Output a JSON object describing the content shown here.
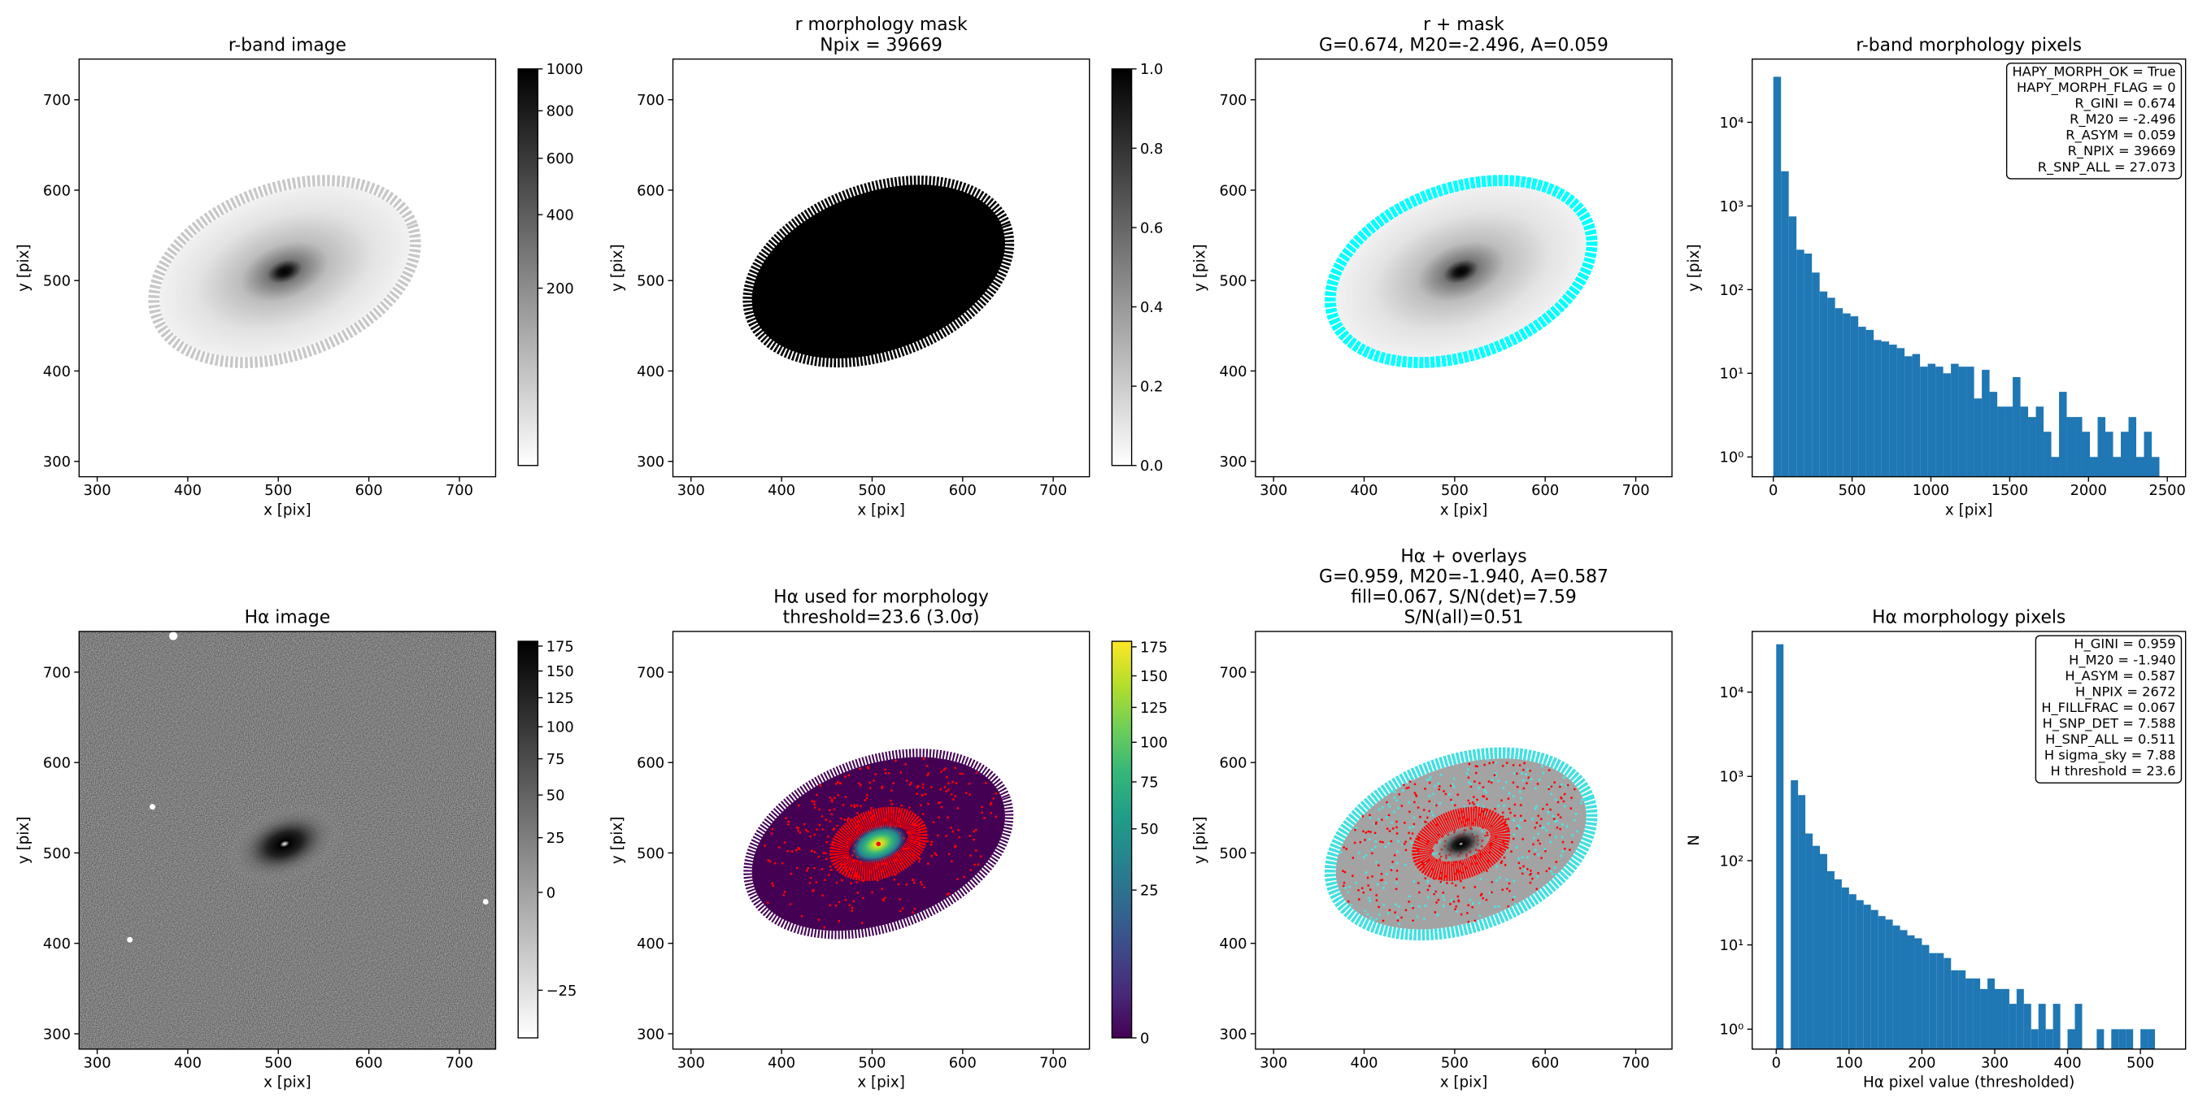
{
  "chart_data": [
    {
      "type": "image",
      "title": [
        "r-band image"
      ],
      "xlabel": "x [pix]",
      "ylabel": "y [pix]",
      "xlim": [
        280,
        740
      ],
      "ylim": [
        283,
        745
      ],
      "xticks": [
        300,
        400,
        500,
        600,
        700
      ],
      "yticks": [
        300,
        400,
        500,
        600,
        700
      ],
      "colorbar": {
        "colormap": "gray_r",
        "scale": "sqrt",
        "clim": [
          0,
          1000
        ],
        "ticks": [
          200,
          400,
          600,
          800,
          1000
        ]
      }
    },
    {
      "type": "image",
      "title": [
        "r morphology mask",
        "Npix = 39669"
      ],
      "xlabel": "x [pix]",
      "ylabel": "y [pix]",
      "xlim": [
        280,
        740
      ],
      "ylim": [
        283,
        745
      ],
      "xticks": [
        300,
        400,
        500,
        600,
        700
      ],
      "yticks": [
        300,
        400,
        500,
        600,
        700
      ],
      "colorbar": {
        "colormap": "gray_r",
        "scale": "linear",
        "clim": [
          0,
          1
        ],
        "ticks": [
          {
            "value": 0,
            "label": "0.0"
          },
          {
            "value": 0.2,
            "label": "0.2"
          },
          {
            "value": 0.4,
            "label": "0.4"
          },
          {
            "value": 0.6,
            "label": "0.6"
          },
          {
            "value": 0.8,
            "label": "0.8"
          },
          {
            "value": 1,
            "label": "1.0"
          }
        ]
      }
    },
    {
      "type": "image",
      "title": [
        "r + mask",
        "G=0.674, M20=-2.496, A=0.059"
      ],
      "xlabel": "x [pix]",
      "ylabel": "y [pix]",
      "xlim": [
        280,
        740
      ],
      "ylim": [
        283,
        745
      ],
      "xticks": [
        300,
        400,
        500,
        600,
        700
      ],
      "yticks": [
        300,
        400,
        500,
        600,
        700
      ]
    },
    {
      "type": "histogram",
      "title": [
        "r-band morphology pixels"
      ],
      "xlabel": "x [pix]",
      "ylabel": "y [pix]",
      "color": "#1f77b4",
      "bins": [
        0,
        49,
        98,
        147,
        196,
        245,
        294,
        343,
        392,
        441,
        490,
        539,
        588,
        637,
        686,
        735,
        784,
        833,
        882,
        931,
        980,
        1029,
        1078,
        1127,
        1176,
        1225,
        1274,
        1323,
        1372,
        1421,
        1470,
        1519,
        1568,
        1617,
        1666,
        1715,
        1764,
        1813,
        1862,
        1911,
        1960,
        2009,
        2058,
        2107,
        2156,
        2205,
        2254,
        2303,
        2352,
        2401,
        2450
      ],
      "counts": [
        35000,
        2600,
        750,
        300,
        270,
        160,
        95,
        80,
        60,
        52,
        48,
        36,
        33,
        25,
        24,
        22,
        20,
        16,
        17,
        12,
        13,
        12,
        10,
        13,
        12,
        12,
        5,
        11,
        6,
        4,
        4,
        9,
        4,
        3,
        4,
        2,
        1,
        6,
        3,
        3,
        2,
        1,
        3,
        2,
        1,
        2,
        3,
        1,
        2,
        1
      ],
      "xlim": [
        -134,
        2616
      ],
      "ylim": [
        0.58,
        57000
      ],
      "yscale": "log",
      "xticks": [
        0,
        500,
        1000,
        1500,
        2000,
        2500
      ],
      "yticks": [
        {
          "value": 1,
          "label": "10⁰"
        },
        {
          "value": 10,
          "label": "10¹"
        },
        {
          "value": 100,
          "label": "10²"
        },
        {
          "value": 1000,
          "label": "10³"
        },
        {
          "value": 10000,
          "label": "10⁴"
        }
      ],
      "annotation": [
        "HAPY_MORPH_OK = True",
        "HAPY_MORPH_FLAG = 0",
        "R_GINI = 0.674",
        "R_M20 = -2.496",
        "R_ASYM = 0.059",
        "R_NPIX = 39669",
        "R_SNP_ALL = 27.073"
      ]
    },
    {
      "type": "image",
      "title": [
        "Hα image"
      ],
      "xlabel": "x [pix]",
      "ylabel": "y [pix]",
      "xlim": [
        280,
        740
      ],
      "ylim": [
        283,
        745
      ],
      "xticks": [
        300,
        400,
        500,
        600,
        700
      ],
      "yticks": [
        300,
        400,
        500,
        600,
        700
      ],
      "colorbar": {
        "colormap": "gray_r",
        "scale": "sqrt",
        "clim": [
          -28,
          180
        ],
        "ticks": [
          {
            "value": -25,
            "label": "−25"
          },
          0,
          25,
          50,
          75,
          100,
          125,
          150,
          175
        ]
      }
    },
    {
      "type": "image",
      "title": [
        "Hα used for morphology",
        "threshold=23.6 (3.0σ)"
      ],
      "xlabel": "x [pix]",
      "ylabel": "y [pix]",
      "xlim": [
        280,
        740
      ],
      "ylim": [
        283,
        745
      ],
      "xticks": [
        300,
        400,
        500,
        600,
        700
      ],
      "yticks": [
        300,
        400,
        500,
        600,
        700
      ],
      "colorbar": {
        "colormap": "viridis",
        "scale": "sqrt",
        "clim": [
          0,
          180
        ],
        "ticks": [
          0,
          25,
          50,
          75,
          100,
          125,
          150,
          175
        ]
      }
    },
    {
      "type": "image",
      "title": [
        "Hα + overlays",
        "G=0.959, M20=-1.940, A=0.587",
        "fill=0.067, S/N(det)=7.59",
        "S/N(all)=0.51"
      ],
      "xlabel": "x [pix]",
      "ylabel": "y [pix]",
      "xlim": [
        280,
        740
      ],
      "ylim": [
        283,
        745
      ],
      "xticks": [
        300,
        400,
        500,
        600,
        700
      ],
      "yticks": [
        300,
        400,
        500,
        600,
        700
      ]
    },
    {
      "type": "histogram",
      "title": [
        "Hα morphology pixels"
      ],
      "xlabel": "Hα pixel value (thresholded)",
      "ylabel": "N",
      "color": "#1f77b4",
      "bins": [
        0,
        10,
        20,
        30,
        40,
        50,
        60,
        70,
        80,
        90,
        100,
        110,
        120,
        130,
        140,
        150,
        160,
        170,
        180,
        190,
        200,
        210,
        220,
        230,
        240,
        250,
        260,
        270,
        280,
        290,
        300,
        310,
        320,
        330,
        340,
        350,
        360,
        370,
        380,
        390,
        400,
        410,
        420,
        430,
        440,
        450,
        460,
        470,
        480,
        490,
        500,
        510,
        520
      ],
      "counts": [
        37000,
        0,
        900,
        600,
        210,
        150,
        120,
        75,
        60,
        48,
        40,
        34,
        30,
        26,
        22,
        20,
        17,
        15,
        13,
        12,
        10,
        8,
        8,
        7,
        5,
        5,
        4,
        4,
        3,
        4,
        3,
        3,
        2,
        3,
        2,
        1,
        2,
        1,
        2,
        0,
        1,
        2,
        0,
        0,
        1,
        0,
        1,
        1,
        1,
        0,
        1,
        1
      ],
      "xlim": [
        -33,
        562
      ],
      "ylim": [
        0.58,
        52500
      ],
      "yscale": "log",
      "xticks": [
        0,
        100,
        200,
        300,
        400,
        500
      ],
      "yticks": [
        {
          "value": 1,
          "label": "10⁰"
        },
        {
          "value": 10,
          "label": "10¹"
        },
        {
          "value": 100,
          "label": "10²"
        },
        {
          "value": 1000,
          "label": "10³"
        },
        {
          "value": 10000,
          "label": "10⁴"
        }
      ],
      "annotation": [
        "H_GINI = 0.959",
        "H_M20 = -1.940",
        "H_ASYM = 0.587",
        "H_NPIX = 2672",
        "H_FILLFRAC = 0.067",
        "H_SNP_DET = 7.588",
        "H_SNP_ALL = 0.511",
        "H sigma_sky = 7.88",
        "H threshold = 23.6"
      ]
    }
  ]
}
